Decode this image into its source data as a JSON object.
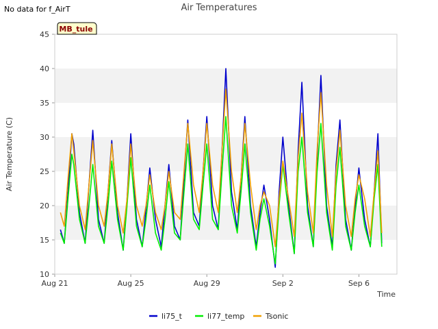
{
  "note": "No data for f_AirT",
  "chart_data": {
    "type": "line",
    "title": "Air Temperatures",
    "xlabel": "Time",
    "ylabel": "Air Temperature (C)",
    "badge": "MB_tule",
    "ylim": [
      10,
      45
    ],
    "yticks": [
      10,
      15,
      20,
      25,
      30,
      35,
      40,
      45
    ],
    "xlim_days": [
      0,
      18
    ],
    "xticks": [
      {
        "label": "Aug 21",
        "day": 0
      },
      {
        "label": "Aug 25",
        "day": 4
      },
      {
        "label": "Aug 29",
        "day": 8
      },
      {
        "label": "Sep 2",
        "day": 12
      },
      {
        "label": "Sep 6",
        "day": 16
      }
    ],
    "grid": "horizontal alternating bands",
    "legend_position": "bottom-center",
    "colors": {
      "li75_t": "#0000cc",
      "li77_temp": "#00ee00",
      "Tsonic": "#f0a000"
    },
    "series": [
      {
        "name": "li75_t",
        "x": [
          0.3,
          0.5,
          0.7,
          0.9,
          1.0,
          1.3,
          1.6,
          1.8,
          2.0,
          2.3,
          2.6,
          2.8,
          3.0,
          3.3,
          3.6,
          3.8,
          4.0,
          4.3,
          4.6,
          4.8,
          5.0,
          5.3,
          5.6,
          5.8,
          6.0,
          6.3,
          6.6,
          6.8,
          7.0,
          7.3,
          7.6,
          7.8,
          8.0,
          8.3,
          8.6,
          8.8,
          9.0,
          9.3,
          9.6,
          9.8,
          10.0,
          10.3,
          10.6,
          10.8,
          11.0,
          11.3,
          11.6,
          11.8,
          12.0,
          12.3,
          12.6,
          12.8,
          13.0,
          13.3,
          13.6,
          13.8,
          14.0,
          14.3,
          14.6,
          14.8,
          15.0,
          15.3,
          15.6,
          15.8,
          16.0,
          16.3,
          16.6,
          16.8,
          17.0,
          17.2
        ],
        "y": [
          16.5,
          14.5,
          22,
          30.5,
          29,
          19,
          14.5,
          23,
          31,
          18,
          14.5,
          22,
          29.5,
          19,
          13.5,
          21,
          30.5,
          18,
          14,
          19.5,
          25.5,
          18,
          14,
          20,
          26,
          17,
          15,
          24,
          32.5,
          19,
          17,
          25,
          33,
          20,
          16.5,
          28,
          40,
          22,
          16.5,
          24,
          33,
          20,
          14,
          19,
          23,
          18,
          11,
          22,
          30,
          20,
          13,
          28,
          38,
          20,
          14,
          27,
          39,
          20,
          14,
          26,
          32.5,
          18,
          13.5,
          20,
          25.5,
          18,
          14,
          22,
          30.5,
          14.5
        ]
      },
      {
        "name": "li77_temp",
        "x": [
          0.3,
          0.5,
          0.7,
          0.9,
          1.0,
          1.3,
          1.6,
          1.8,
          2.0,
          2.3,
          2.6,
          2.8,
          3.0,
          3.3,
          3.6,
          3.8,
          4.0,
          4.3,
          4.6,
          4.8,
          5.0,
          5.3,
          5.6,
          5.8,
          6.0,
          6.3,
          6.6,
          6.8,
          7.0,
          7.3,
          7.6,
          7.8,
          8.0,
          8.3,
          8.6,
          8.8,
          9.0,
          9.3,
          9.6,
          9.8,
          10.0,
          10.3,
          10.6,
          10.8,
          11.0,
          11.3,
          11.6,
          11.8,
          12.0,
          12.3,
          12.6,
          12.8,
          13.0,
          13.3,
          13.6,
          13.8,
          14.0,
          14.3,
          14.6,
          14.8,
          15.0,
          15.3,
          15.6,
          15.8,
          16.0,
          16.3,
          16.6,
          16.8,
          17.0,
          17.2
        ],
        "y": [
          16,
          14.5,
          21,
          27.5,
          26,
          18,
          14.5,
          20,
          26,
          17,
          14.5,
          20,
          26.5,
          18,
          13.5,
          20,
          27,
          17,
          14,
          18,
          23,
          16,
          13.5,
          18,
          23.5,
          16,
          15,
          22,
          29,
          18,
          16.5,
          23,
          29,
          18,
          16.5,
          25,
          33,
          20,
          16,
          22,
          29,
          19,
          13.5,
          18,
          21,
          17,
          11.5,
          20,
          26,
          19,
          13,
          25,
          30,
          19,
          14,
          25,
          32,
          19,
          13.5,
          23,
          28.5,
          17,
          13.5,
          19,
          23,
          17,
          14,
          21,
          26,
          14
        ]
      },
      {
        "name": "Tsonic",
        "x": [
          0.3,
          0.5,
          0.7,
          0.9,
          1.0,
          1.3,
          1.6,
          1.8,
          2.0,
          2.3,
          2.6,
          2.8,
          3.0,
          3.3,
          3.6,
          3.8,
          4.0,
          4.3,
          4.6,
          4.8,
          5.0,
          5.3,
          5.6,
          5.8,
          6.0,
          6.3,
          6.6,
          6.8,
          7.0,
          7.3,
          7.6,
          7.8,
          8.0,
          8.3,
          8.6,
          8.8,
          9.0,
          9.3,
          9.6,
          9.8,
          10.0,
          10.3,
          10.6,
          10.8,
          11.0,
          11.3,
          11.6,
          11.8,
          12.0,
          12.3,
          12.6,
          12.8,
          13.0,
          13.3,
          13.6,
          13.8,
          14.0,
          14.3,
          14.6,
          14.8,
          15.0,
          15.3,
          15.6,
          15.8,
          16.0,
          16.3,
          16.6,
          16.8,
          17.0,
          17.2
        ],
        "y": [
          19,
          17,
          24,
          30.5,
          28,
          20,
          16.5,
          23,
          29.5,
          20,
          17,
          22,
          29,
          20,
          16,
          21,
          29,
          20,
          17,
          20,
          24.5,
          19,
          16.5,
          20,
          25,
          19,
          18,
          25,
          32,
          23,
          19,
          25,
          32,
          23,
          19,
          28,
          37,
          25,
          19,
          24,
          32,
          23,
          16.5,
          20,
          22,
          20,
          14,
          21,
          26.5,
          21,
          15.5,
          27,
          33.5,
          22,
          16,
          28,
          36.5,
          23,
          15.5,
          25,
          31,
          20,
          15.5,
          21,
          24.5,
          21,
          15.5,
          22,
          28,
          16
        ]
      }
    ]
  }
}
